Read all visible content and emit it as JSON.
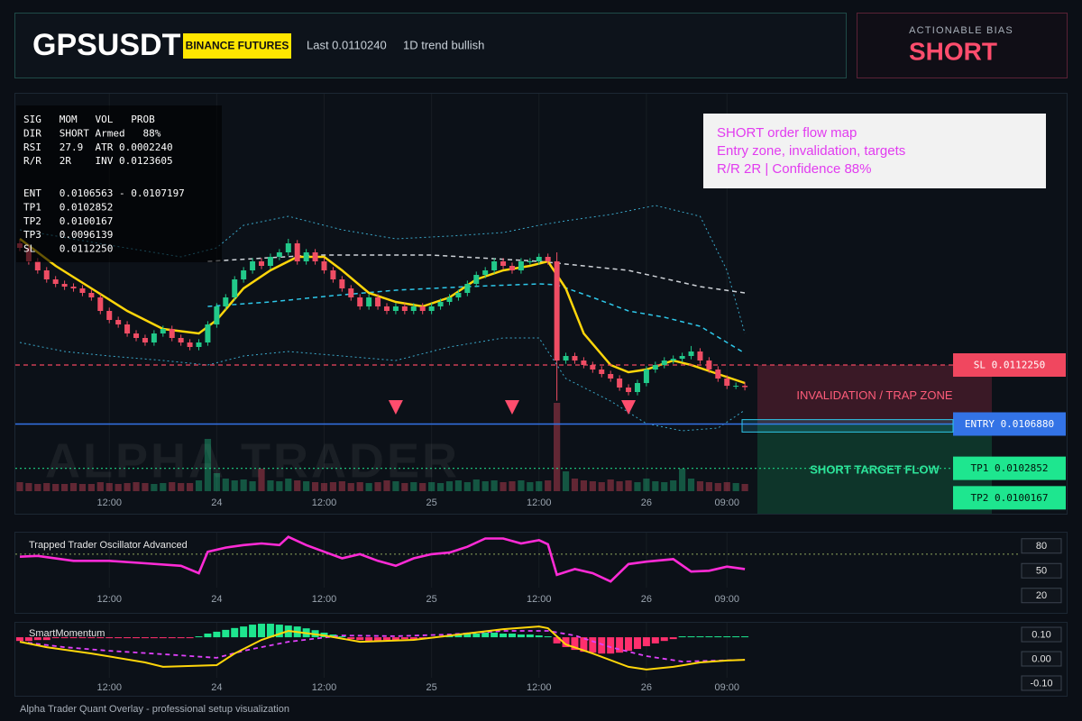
{
  "header": {
    "symbol": "GPSUSDT",
    "exchange": "BINANCE FUTURES",
    "last": "Last 0.0110240",
    "trend": "1D trend bullish"
  },
  "bias": {
    "label": "ACTIONABLE BIAS",
    "value": "SHORT"
  },
  "info_panel": {
    "stats": [
      "SIG   MOM   VOL   PROB",
      "DIR   SHORT Armed   88%",
      "RSI   27.9  ATR 0.0002240",
      "R/R   2R    INV 0.0123605"
    ],
    "levels": [
      "ENT   0.0106563 - 0.0107197",
      "TP1   0.0102852",
      "TP2   0.0100167",
      "TP3   0.0096139",
      "SL    0.0112250"
    ]
  },
  "annotation": {
    "lines": [
      "SHORT order flow map",
      "Entry zone, invalidation, targets",
      "R/R 2R | Confidence 88%"
    ]
  },
  "watermark": "ALPHA TRADER",
  "footer": "Alpha Trader Quant Overlay - professional setup visualization",
  "chart_data": [
    {
      "type": "candlestick",
      "xlim": [
        -0.6,
        82.4
      ],
      "ylim": [
        0.009872,
        0.013685
      ],
      "xticks": [
        {
          "value": 10,
          "label": "12:00"
        },
        {
          "value": 22,
          "label": "24"
        },
        {
          "value": 34,
          "label": "12:00"
        },
        {
          "value": 46,
          "label": "25"
        },
        {
          "value": 58,
          "label": "12:00"
        },
        {
          "value": 70,
          "label": "26"
        },
        {
          "value": 79,
          "label": "09:00"
        }
      ],
      "up_color": "#22c98a",
      "down_color": "#ef4d64",
      "open": [
        0.012332,
        0.012291,
        0.012168,
        0.012086,
        0.012004,
        0.011963,
        0.011938,
        0.011922,
        0.011881,
        0.01184,
        0.011717,
        0.011635,
        0.011594,
        0.011512,
        0.011471,
        0.01143,
        0.011512,
        0.011553,
        0.011471,
        0.01143,
        0.011389,
        0.01143,
        0.011594,
        0.011758,
        0.01184,
        0.012004,
        0.012086,
        0.012168,
        0.012127,
        0.012209,
        0.01225,
        0.012332,
        0.012168,
        0.01225,
        0.012168,
        0.012086,
        0.012004,
        0.011922,
        0.01184,
        0.011758,
        0.01184,
        0.011758,
        0.011717,
        0.011758,
        0.011717,
        0.011758,
        0.011717,
        0.011758,
        0.011799,
        0.01184,
        0.011881,
        0.011963,
        0.012045,
        0.012086,
        0.012168,
        0.012127,
        0.012086,
        0.012168,
        0.012168,
        0.012209,
        0.012168,
        0.011266,
        0.011307,
        0.011266,
        0.011225,
        0.011184,
        0.011143,
        0.011102,
        0.01102,
        0.010979,
        0.011061,
        0.011184,
        0.011225,
        0.011266,
        0.011282,
        0.011307,
        0.011348,
        0.011266,
        0.011184,
        0.011102,
        0.011036,
        0.011036
      ],
      "high": [
        0.012362,
        0.012321,
        0.012198,
        0.012116,
        0.012034,
        0.011993,
        0.011968,
        0.011952,
        0.011911,
        0.01187,
        0.011747,
        0.011665,
        0.011624,
        0.011542,
        0.011501,
        0.011542,
        0.011583,
        0.011583,
        0.011501,
        0.01146,
        0.01146,
        0.011624,
        0.011788,
        0.01187,
        0.012034,
        0.012116,
        0.012198,
        0.012198,
        0.012239,
        0.01228,
        0.012373,
        0.012362,
        0.01228,
        0.01228,
        0.012198,
        0.012116,
        0.012034,
        0.011952,
        0.01187,
        0.01187,
        0.01187,
        0.011788,
        0.011788,
        0.011788,
        0.011788,
        0.011788,
        0.011788,
        0.011829,
        0.01187,
        0.011911,
        0.011993,
        0.012075,
        0.012116,
        0.012198,
        0.012198,
        0.012157,
        0.012198,
        0.012198,
        0.012239,
        0.012239,
        0.01225,
        0.011337,
        0.011337,
        0.011296,
        0.011255,
        0.011214,
        0.011173,
        0.011132,
        0.01105,
        0.011091,
        0.011214,
        0.011255,
        0.011296,
        0.011312,
        0.011337,
        0.011398,
        0.011378,
        0.011296,
        0.011214,
        0.011132,
        0.011066,
        0.011066
      ],
      "low": [
        0.012261,
        0.012138,
        0.012056,
        0.011974,
        0.011933,
        0.011908,
        0.011892,
        0.011851,
        0.01181,
        0.011687,
        0.011605,
        0.011564,
        0.011482,
        0.011441,
        0.0114,
        0.0114,
        0.011482,
        0.011441,
        0.0114,
        0.011359,
        0.011359,
        0.0114,
        0.011564,
        0.011728,
        0.01181,
        0.011974,
        0.012056,
        0.012097,
        0.012097,
        0.012179,
        0.01222,
        0.012138,
        0.012138,
        0.012138,
        0.012056,
        0.011974,
        0.011892,
        0.01181,
        0.011728,
        0.011728,
        0.011728,
        0.011687,
        0.011687,
        0.011687,
        0.011687,
        0.011687,
        0.011687,
        0.011728,
        0.011769,
        0.01181,
        0.011851,
        0.011933,
        0.012015,
        0.012056,
        0.012097,
        0.012056,
        0.012056,
        0.012138,
        0.012138,
        0.012138,
        0.0109,
        0.011236,
        0.011236,
        0.011195,
        0.011154,
        0.011113,
        0.011072,
        0.01099,
        0.010949,
        0.010949,
        0.011031,
        0.011154,
        0.011195,
        0.011236,
        0.011252,
        0.011277,
        0.011236,
        0.011154,
        0.011072,
        0.011006,
        0.011006,
        0.010994
      ],
      "close": [
        0.012291,
        0.012168,
        0.012086,
        0.012004,
        0.011963,
        0.011938,
        0.011922,
        0.011881,
        0.01184,
        0.011717,
        0.011635,
        0.011594,
        0.011512,
        0.011471,
        0.01143,
        0.011512,
        0.011553,
        0.011471,
        0.01143,
        0.011389,
        0.01143,
        0.011594,
        0.011758,
        0.01184,
        0.012004,
        0.012086,
        0.012168,
        0.012127,
        0.012209,
        0.01225,
        0.012332,
        0.012168,
        0.01225,
        0.012168,
        0.012086,
        0.012004,
        0.011922,
        0.01184,
        0.011758,
        0.01184,
        0.011758,
        0.011717,
        0.011758,
        0.011717,
        0.011758,
        0.011717,
        0.011758,
        0.011799,
        0.01184,
        0.011881,
        0.011963,
        0.012045,
        0.012086,
        0.012168,
        0.012127,
        0.012086,
        0.012168,
        0.012168,
        0.012209,
        0.012168,
        0.011266,
        0.011307,
        0.011266,
        0.011225,
        0.011184,
        0.011143,
        0.011102,
        0.01102,
        0.010979,
        0.011061,
        0.011184,
        0.011225,
        0.011266,
        0.011282,
        0.011307,
        0.011348,
        0.011266,
        0.011184,
        0.011102,
        0.011036,
        0.011036,
        0.011024
      ],
      "volume": [
        10,
        9,
        8,
        9,
        8,
        8,
        9,
        8,
        8,
        10,
        9,
        8,
        9,
        10,
        9,
        8,
        9,
        10,
        9,
        9,
        12,
        58,
        20,
        14,
        12,
        13,
        11,
        25,
        12,
        11,
        14,
        12,
        11,
        10,
        9,
        10,
        11,
        9,
        10,
        9,
        10,
        12,
        11,
        9,
        10,
        9,
        10,
        9,
        11,
        12,
        10,
        13,
        11,
        12,
        10,
        11,
        12,
        10,
        11,
        12,
        98,
        22,
        14,
        12,
        11,
        10,
        13,
        11,
        12,
        10,
        14,
        11,
        10,
        12,
        25,
        14,
        11,
        10,
        9,
        10,
        9,
        8
      ],
      "overlays": [
        {
          "style": "band",
          "color": "#3aa7c9",
          "x": [
            0,
            10,
            18,
            22,
            25,
            30,
            36,
            42,
            48,
            54,
            58,
            61,
            66,
            71,
            76,
            79,
            81
          ],
          "values": [
            0.012455,
            0.012316,
            0.012209,
            0.012291,
            0.012496,
            0.012578,
            0.012455,
            0.012373,
            0.012398,
            0.01243,
            0.012496,
            0.012537,
            0.012594,
            0.012676,
            0.012578,
            0.012086,
            0.011512
          ]
        },
        {
          "style": "band",
          "color": "#3aa7c9",
          "x": [
            0,
            5,
            10,
            16,
            21,
            25,
            30,
            36,
            42,
            48,
            54,
            58,
            61,
            66,
            70,
            74,
            78,
            81
          ],
          "values": [
            0.01143,
            0.011348,
            0.011307,
            0.011266,
            0.011225,
            0.011307,
            0.011348,
            0.011307,
            0.011266,
            0.011389,
            0.011471,
            0.011471,
            0.011102,
            0.010897,
            0.010692,
            0.010626,
            0.010651,
            0.010815
          ]
        },
        {
          "style": "dashed",
          "color": "#cfd3d8",
          "x": [
            21,
            33,
            46,
            58,
            68,
            76,
            81
          ],
          "values": [
            0.012168,
            0.012225,
            0.012225,
            0.012168,
            0.012086,
            0.011938,
            0.011881
          ]
        },
        {
          "style": "dashed",
          "color": "#2ec8ea",
          "x": [
            21,
            28,
            35,
            42,
            50,
            58,
            60,
            64,
            68,
            72,
            76,
            81
          ],
          "values": [
            0.011758,
            0.011799,
            0.011856,
            0.011906,
            0.011938,
            0.011963,
            0.011955,
            0.01184,
            0.011717,
            0.01166,
            0.011578,
            0.011332
          ]
        },
        {
          "style": "solid",
          "color": "#ffd60a",
          "x": [
            0,
            4,
            8,
            12,
            16,
            20,
            22,
            25,
            28,
            31,
            34,
            36,
            39,
            42,
            45,
            48,
            51,
            54,
            57,
            59,
            61,
            63,
            66,
            68,
            70,
            73,
            75,
            78,
            81
          ],
          "values": [
            0.012373,
            0.012127,
            0.011922,
            0.011717,
            0.011553,
            0.011512,
            0.011635,
            0.011922,
            0.012086,
            0.012209,
            0.012209,
            0.012086,
            0.011881,
            0.011799,
            0.011758,
            0.01184,
            0.012004,
            0.012086,
            0.012127,
            0.012168,
            0.011922,
            0.011512,
            0.011225,
            0.011159,
            0.011184,
            0.011266,
            0.011225,
            0.011143,
            0.011061
          ]
        }
      ],
      "levels": [
        {
          "label": "SL 0.0112250",
          "value": 0.011225,
          "color": "#f0475f",
          "text_color": "#ffffff",
          "style": "dashed"
        },
        {
          "label": "ENTRY 0.0106880",
          "value": 0.010688,
          "color": "#3373e6",
          "text_color": "#ffffff",
          "style": "solid"
        },
        {
          "label": "TP1 0.0102852",
          "value": 0.0102852,
          "color": "#1ee68f",
          "text_color": "#04140c",
          "style": "dotted"
        },
        {
          "label": "TP2 0.0100167",
          "value": 0.0100167,
          "color": "#1ee68f",
          "text_color": "#04140c",
          "style": "none"
        }
      ],
      "entry_zone": [
        0.0106563,
        0.0107197
      ],
      "zones": [
        {
          "label": "INVALIDATION / TRAP ZONE",
          "from": 0.011225,
          "to": 0.010688,
          "color": "#e0385a",
          "text_color": "#ff5c7a"
        },
        {
          "label": "SHORT TARGET FLOW",
          "from": 0.010688,
          "to": 0.009872,
          "color": "#15b86e",
          "text_color": "#2de39a"
        }
      ],
      "signals": [
        42,
        55,
        68
      ],
      "signal_color": "#ff4d6d"
    },
    {
      "type": "line",
      "title": "Trapped Trader Oscillator Advanced",
      "xlim": [
        -0.6,
        82.4
      ],
      "ylim": [
        -1,
        95
      ],
      "yticks": [
        20,
        50,
        80
      ],
      "threshold": 70,
      "color": "#ff2bd6",
      "x": [
        0,
        2,
        6,
        10,
        14,
        18,
        20,
        21,
        23,
        25,
        27,
        29,
        30,
        32,
        34,
        36,
        38,
        40,
        42,
        44,
        46,
        48,
        50,
        52,
        54,
        56,
        58,
        59,
        60,
        62,
        64,
        66,
        68,
        70,
        73,
        75,
        77,
        79,
        81
      ],
      "values": [
        67,
        68,
        62,
        62,
        59,
        56,
        47,
        73,
        78,
        81,
        83,
        81,
        91,
        81,
        73,
        65,
        70,
        62,
        56,
        65,
        70,
        72,
        79,
        89,
        89,
        83,
        87,
        82,
        45,
        52,
        47,
        37,
        58,
        61,
        64,
        49,
        50,
        55,
        52
      ]
    },
    {
      "type": "momentum",
      "title": "SmartMomentum",
      "xlim": [
        -0.6,
        82.4
      ],
      "ylim": [
        -0.152,
        0.152
      ],
      "y2lim": [
        -0.19,
        0.05
      ],
      "yticks": [
        {
          "value": 0.1,
          "label": "0.10"
        },
        {
          "value": 0,
          "label": "0.00"
        },
        {
          "value": -0.1,
          "label": "-0.10"
        }
      ],
      "histogram": {
        "axis": "y2",
        "up_color": "#1ee68f",
        "down_color": "#ff2f6d",
        "values": [
          -0.012,
          -0.012,
          -0.009,
          -0.009,
          -0.003,
          -0.003,
          -0.003,
          -0.003,
          -0.003,
          -0.003,
          -0.003,
          -0.003,
          -0.003,
          -0.003,
          -0.003,
          -0.003,
          -0.003,
          -0.003,
          -0.003,
          -0.003,
          0.003,
          0.012,
          0.018,
          0.024,
          0.03,
          0.035,
          0.041,
          0.044,
          0.044,
          0.041,
          0.038,
          0.035,
          0.029,
          0.023,
          0.015,
          0.009,
          0.003,
          -0.006,
          -0.009,
          -0.012,
          -0.012,
          -0.009,
          -0.009,
          -0.006,
          -0.006,
          -0.003,
          -0.003,
          0.003,
          0.006,
          0.009,
          0.012,
          0.012,
          0.015,
          0.015,
          0.012,
          0.012,
          0.009,
          0.009,
          0.006,
          0.003,
          -0.02,
          -0.032,
          -0.041,
          -0.047,
          -0.05,
          -0.053,
          -0.053,
          -0.05,
          -0.044,
          -0.038,
          -0.029,
          -0.02,
          -0.012,
          -0.006,
          0.003,
          0.003,
          0.003,
          0.003,
          0.003,
          0.003,
          0.003,
          0.003
        ]
      },
      "lines": [
        {
          "style": "dashed",
          "color": "#e040fb",
          "x": [
            0,
            5,
            10,
            16,
            22,
            25,
            30,
            36,
            42,
            48,
            54,
            59,
            62,
            66,
            70,
            74,
            78,
            81
          ],
          "values": [
            0.07,
            0.048,
            0.033,
            0.019,
            0.004,
            0.033,
            0.07,
            0.096,
            0.093,
            0.1,
            0.115,
            0.115,
            0.096,
            0.048,
            0.011,
            -0.011,
            -0.007,
            -0.004
          ]
        },
        {
          "style": "solid",
          "color": "#ffd60a",
          "x": [
            0,
            3,
            8,
            14,
            16,
            22,
            24,
            27,
            30,
            34,
            38,
            44,
            50,
            54,
            58,
            59,
            61,
            64,
            68,
            70,
            73,
            76,
            79,
            81
          ],
          "values": [
            0.07,
            0.048,
            0.022,
            -0.015,
            -0.033,
            -0.026,
            0.022,
            0.078,
            0.115,
            0.096,
            0.07,
            0.078,
            0.104,
            0.122,
            0.133,
            0.126,
            0.059,
            0.022,
            -0.033,
            -0.044,
            -0.033,
            -0.015,
            -0.007,
            -0.004
          ]
        }
      ]
    }
  ]
}
